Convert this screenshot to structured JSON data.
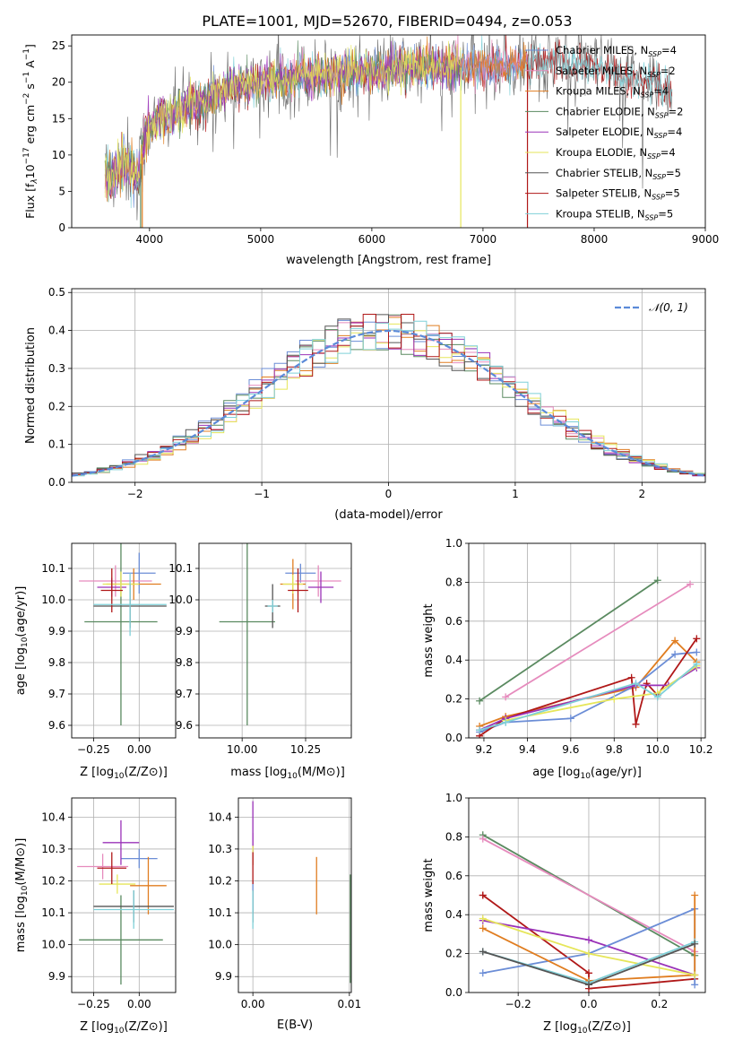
{
  "figure": {
    "title": "PLATE=1001, MJD=52670, FIBERID=0494, z=0.053"
  },
  "model_colors": {
    "Chabrier MILES": "#6b8dd6",
    "Salpeter MILES": "#e68bbd",
    "Kroupa MILES": "#e07d20",
    "Chabrier ELODIE": "#5a8a60",
    "Salpeter ELODIE": "#9a32b8",
    "Kroupa ELODIE": "#e6e65a",
    "Chabrier STELIB": "#555555",
    "Salpeter STELIB": "#b01818",
    "Kroupa STELIB": "#7fd0d8"
  },
  "chart_data": [
    {
      "id": "spectrum",
      "type": "line",
      "xlabel": "wavelength [Angstrom, rest frame]",
      "ylabel": "Flux [f_λ10^-17 erg cm^-2 s^-1 A^-1]",
      "xlim": [
        3300,
        9000
      ],
      "ylim": [
        0,
        26.5
      ],
      "xticks": [
        4000,
        5000,
        6000,
        7000,
        8000,
        9000
      ],
      "yticks": [
        0,
        5,
        10,
        15,
        20,
        25
      ],
      "grid": false,
      "legend": "top-right",
      "legend_entries": [
        {
          "label": "Chabrier MILES, N",
          "sub": "SSP",
          "suffix": "=4"
        },
        {
          "label": "Salpeter MILES, N",
          "sub": "SSP",
          "suffix": "=2"
        },
        {
          "label": "Kroupa MILES, N",
          "sub": "SSP",
          "suffix": "=4"
        },
        {
          "label": "Chabrier ELODIE, N",
          "sub": "SSP",
          "suffix": "=2"
        },
        {
          "label": "Salpeter ELODIE, N",
          "sub": "SSP",
          "suffix": "=4"
        },
        {
          "label": "Kroupa ELODIE, N",
          "sub": "SSP",
          "suffix": "=4"
        },
        {
          "label": "Chabrier STELIB, N",
          "sub": "SSP",
          "suffix": "=5"
        },
        {
          "label": "Salpeter STELIB, N",
          "sub": "SSP",
          "suffix": "=5"
        },
        {
          "label": "Kroupa STELIB, N",
          "sub": "SSP",
          "suffix": "=5"
        }
      ],
      "envelope_x": [
        3600,
        3700,
        3800,
        3900,
        3950,
        4000,
        4100,
        4200,
        4300,
        4400,
        4500,
        4600,
        4800,
        5000,
        5200,
        5400,
        5600,
        5800,
        6000,
        6200,
        6400,
        6600,
        6800,
        7000,
        7200,
        7400,
        7600,
        7800,
        8000,
        8200,
        8400,
        8700
      ],
      "envelope_y": [
        7,
        8,
        9,
        7,
        11.5,
        14,
        15,
        15.5,
        16.5,
        17,
        17.5,
        18.5,
        19.5,
        20,
        20.5,
        21,
        21,
        21.5,
        21.5,
        22,
        22,
        22,
        22,
        22,
        22.2,
        22.5,
        22.8,
        22.5,
        22,
        21,
        20,
        19
      ]
    },
    {
      "id": "residual-histogram",
      "type": "step",
      "xlabel": "(data-model)/error",
      "ylabel": "Normed distribution",
      "xlim": [
        -2.5,
        2.5
      ],
      "ylim": [
        0,
        0.51
      ],
      "xticks": [
        -2,
        -1,
        0,
        1,
        2
      ],
      "yticks": [
        0.0,
        0.1,
        0.2,
        0.3,
        0.4,
        0.5
      ],
      "grid": true,
      "legend": "top-right",
      "legend_entries": [
        {
          "label": "𝒩(0, 1)"
        }
      ],
      "bin_width": 0.1
    },
    {
      "id": "age-vs-Z",
      "type": "errorbar",
      "xlabel": "Z [log10(Z/Z⊙)]",
      "ylabel": "age  [log10(age/yr)]",
      "xlim": [
        -0.37,
        0.2
      ],
      "ylim": [
        9.56,
        10.18
      ],
      "xticks": [
        -0.25,
        0.0
      ],
      "yticks": [
        9.6,
        9.7,
        9.8,
        9.9,
        10.0,
        10.1
      ],
      "grid": true,
      "points": [
        {
          "model": "Chabrier MILES",
          "x": 0.0,
          "y": 10.085,
          "xerr": 0.09,
          "yerr": 0.065
        },
        {
          "model": "Salpeter MILES",
          "x": -0.13,
          "y": 10.06,
          "xerr": 0.2,
          "yerr": 0.05
        },
        {
          "model": "Kroupa MILES",
          "x": -0.03,
          "y": 10.05,
          "xerr": 0.15,
          "yerr": 0.05
        },
        {
          "model": "Chabrier ELODIE",
          "x": -0.1,
          "y": 9.93,
          "xerr": 0.2,
          "yerr": 0.33
        },
        {
          "model": "Salpeter ELODIE",
          "x": -0.15,
          "y": 10.04,
          "xerr": 0.08,
          "yerr": 0.03
        },
        {
          "model": "Kroupa ELODIE",
          "x": -0.1,
          "y": 10.05,
          "xerr": 0.1,
          "yerr": 0.04
        },
        {
          "model": "Chabrier STELIB",
          "x": -0.05,
          "y": 9.98,
          "xerr": 0.2,
          "yerr": 0.07
        },
        {
          "model": "Salpeter STELIB",
          "x": -0.15,
          "y": 10.03,
          "xerr": 0.06,
          "yerr": 0.07
        },
        {
          "model": "Kroupa STELIB",
          "x": -0.05,
          "y": 9.985,
          "xerr": 0.2,
          "yerr": 0.1
        }
      ]
    },
    {
      "id": "age-vs-mass",
      "type": "errorbar",
      "xlabel": "mass [log10(M/M⊙)]",
      "ylabel": "",
      "xlim": [
        9.83,
        10.43
      ],
      "ylim": [
        9.56,
        10.18
      ],
      "xticks": [
        10.0,
        10.25
      ],
      "yticks": [
        9.6,
        9.7,
        9.8,
        9.9,
        10.0,
        10.1
      ],
      "grid": true,
      "points": [
        {
          "model": "Chabrier MILES",
          "x": 10.23,
          "y": 10.085,
          "xerr": 0.06,
          "yerr": 0.03
        },
        {
          "model": "Salpeter MILES",
          "x": 10.3,
          "y": 10.06,
          "xerr": 0.09,
          "yerr": 0.05
        },
        {
          "model": "Kroupa MILES",
          "x": 10.2,
          "y": 10.05,
          "xerr": 0.05,
          "yerr": 0.08
        },
        {
          "model": "Chabrier ELODIE",
          "x": 10.02,
          "y": 9.93,
          "xerr": 0.11,
          "yerr": 0.33
        },
        {
          "model": "Salpeter ELODIE",
          "x": 10.31,
          "y": 10.04,
          "xerr": 0.05,
          "yerr": 0.05
        },
        {
          "model": "Kroupa ELODIE",
          "x": 10.2,
          "y": 10.05,
          "xerr": 0.04,
          "yerr": 0.03
        },
        {
          "model": "Chabrier STELIB",
          "x": 10.12,
          "y": 9.98,
          "xerr": 0.03,
          "yerr": 0.07
        },
        {
          "model": "Salpeter STELIB",
          "x": 10.22,
          "y": 10.03,
          "xerr": 0.04,
          "yerr": 0.07
        },
        {
          "model": "Kroupa STELIB",
          "x": 10.12,
          "y": 9.98,
          "xerr": 0.02,
          "yerr": 0.02
        }
      ]
    },
    {
      "id": "mass-weight-vs-age",
      "type": "line",
      "xlabel": "age  [log10(age/yr)]",
      "ylabel": "mass weight",
      "xlim": [
        9.13,
        10.22
      ],
      "ylim": [
        0,
        1.0
      ],
      "xticks": [
        9.2,
        9.4,
        9.6,
        9.8,
        10.0,
        10.2
      ],
      "yticks": [
        0.0,
        0.2,
        0.4,
        0.6,
        0.8,
        1.0
      ],
      "grid": true,
      "series": [
        {
          "model": "Chabrier ELODIE",
          "x": [
            9.18,
            10.0
          ],
          "y": [
            0.19,
            0.81
          ]
        },
        {
          "model": "Salpeter MILES",
          "x": [
            9.3,
            10.15
          ],
          "y": [
            0.21,
            0.79
          ]
        },
        {
          "model": "Kroupa MILES",
          "x": [
            9.18,
            9.3,
            9.9,
            10.08,
            10.18
          ],
          "y": [
            0.06,
            0.11,
            0.26,
            0.5,
            0.39
          ]
        },
        {
          "model": "Chabrier MILES",
          "x": [
            9.18,
            9.3,
            9.6,
            9.9,
            10.08,
            10.18
          ],
          "y": [
            0.03,
            0.08,
            0.1,
            0.27,
            0.43,
            0.44
          ]
        },
        {
          "model": "Salpeter STELIB",
          "x": [
            9.18,
            9.3,
            9.88,
            9.9,
            9.95,
            10.0,
            10.18
          ],
          "y": [
            0.01,
            0.1,
            0.31,
            0.07,
            0.28,
            0.22,
            0.51
          ]
        },
        {
          "model": "Salpeter ELODIE",
          "x": [
            9.18,
            9.3,
            9.9,
            10.05,
            10.18
          ],
          "y": [
            0.04,
            0.1,
            0.27,
            0.27,
            0.36
          ]
        },
        {
          "model": "Kroupa ELODIE",
          "x": [
            9.3,
            9.8,
            10.0,
            10.18
          ],
          "y": [
            0.09,
            0.2,
            0.23,
            0.37
          ]
        },
        {
          "model": "Kroupa STELIB",
          "x": [
            9.18,
            9.3,
            9.9,
            10.0,
            10.18
          ],
          "y": [
            0.04,
            0.08,
            0.28,
            0.21,
            0.38
          ]
        }
      ]
    },
    {
      "id": "mass-vs-Z",
      "type": "errorbar",
      "xlabel": "Z [log10(Z/Z⊙)]",
      "ylabel": "mass [log10(M/M⊙)]",
      "xlim": [
        -0.37,
        0.2
      ],
      "ylim": [
        9.85,
        10.46
      ],
      "xticks": [
        -0.25,
        0.0
      ],
      "yticks": [
        9.9,
        10.0,
        10.1,
        10.2,
        10.3,
        10.4
      ],
      "grid": true,
      "points": [
        {
          "model": "Chabrier MILES",
          "x": 0.0,
          "y": 10.27,
          "xerr": 0.1,
          "yerr": 0.03
        },
        {
          "model": "Salpeter MILES",
          "x": -0.2,
          "y": 10.245,
          "xerr": 0.14,
          "yerr": 0.04
        },
        {
          "model": "Kroupa MILES",
          "x": 0.05,
          "y": 10.185,
          "xerr": 0.1,
          "yerr": 0.09
        },
        {
          "model": "Chabrier ELODIE",
          "x": -0.1,
          "y": 10.015,
          "xerr": 0.23,
          "yerr": 0.14
        },
        {
          "model": "Salpeter ELODIE",
          "x": -0.1,
          "y": 10.32,
          "xerr": 0.1,
          "yerr": 0.07
        },
        {
          "model": "Kroupa ELODIE",
          "x": -0.12,
          "y": 10.19,
          "xerr": 0.1,
          "yerr": 0.03
        },
        {
          "model": "Chabrier STELIB",
          "x": -0.03,
          "y": 10.12,
          "xerr": 0.22,
          "yerr": 0.05
        },
        {
          "model": "Salpeter STELIB",
          "x": -0.15,
          "y": 10.24,
          "xerr": 0.08,
          "yerr": 0.05
        },
        {
          "model": "Kroupa STELIB",
          "x": -0.03,
          "y": 10.11,
          "xerr": 0.22,
          "yerr": 0.06
        }
      ]
    },
    {
      "id": "mass-vs-ebv",
      "type": "errorbar",
      "xlabel": "E(B-V)",
      "ylabel": "",
      "xlim": [
        -0.0015,
        0.0102
      ],
      "ylim": [
        9.85,
        10.46
      ],
      "xticks": [
        0.0,
        0.01
      ],
      "yticks": [
        9.9,
        10.0,
        10.1,
        10.2,
        10.3,
        10.4
      ],
      "grid": true,
      "points": [
        {
          "model": "Chabrier MILES",
          "x": 0.0,
          "y": 10.15,
          "xerr": 0,
          "yerr": 0.05
        },
        {
          "model": "Salpeter MILES",
          "x": 0.0,
          "y": 10.3,
          "xerr": 0,
          "yerr": 0.05
        },
        {
          "model": "Kroupa MILES",
          "x": 0.0066,
          "y": 10.185,
          "xerr": 0,
          "yerr": 0.09
        },
        {
          "model": "Chabrier ELODIE",
          "x": 0.0101,
          "y": 10.05,
          "xerr": 0,
          "yerr": 0.17
        },
        {
          "model": "Salpeter ELODIE",
          "x": 0.0,
          "y": 10.35,
          "xerr": 0,
          "yerr": 0.1
        },
        {
          "model": "Kroupa ELODIE",
          "x": 0.0,
          "y": 10.28,
          "xerr": 0,
          "yerr": 0.03
        },
        {
          "model": "Chabrier STELIB",
          "x": 0.0,
          "y": 10.12,
          "xerr": 0,
          "yerr": 0.05
        },
        {
          "model": "Salpeter STELIB",
          "x": 0.0,
          "y": 10.24,
          "xerr": 0,
          "yerr": 0.05
        },
        {
          "model": "Kroupa STELIB",
          "x": 0.0,
          "y": 10.11,
          "xerr": 0,
          "yerr": 0.06
        }
      ]
    },
    {
      "id": "mass-weight-vs-Z",
      "type": "line",
      "xlabel": "Z [log10(Z/Z⊙)]",
      "ylabel": "mass weight",
      "xlim": [
        -0.34,
        0.33
      ],
      "ylim": [
        0,
        1.0
      ],
      "xticks": [
        -0.2,
        0.0,
        0.2
      ],
      "yticks": [
        0.0,
        0.2,
        0.4,
        0.6,
        0.8,
        1.0
      ],
      "grid": true,
      "series": [
        {
          "model": "Chabrier ELODIE",
          "x": [
            -0.3,
            0.3
          ],
          "y": [
            0.81,
            0.19
          ]
        },
        {
          "model": "Salpeter MILES",
          "x": [
            -0.3,
            0.3
          ],
          "y": [
            0.79,
            0.21
          ]
        },
        {
          "model": "Salpeter STELIB",
          "x": [
            -0.3,
            -0.3,
            0.0,
            0.0,
            0.3
          ],
          "y": [
            0.5,
            0.5,
            0.1,
            0.02,
            0.07
          ]
        },
        {
          "model": "Salpeter ELODIE",
          "x": [
            -0.3,
            0.0,
            0.3
          ],
          "y": [
            0.37,
            0.27,
            0.09
          ]
        },
        {
          "model": "Chabrier MILES",
          "x": [
            -0.3,
            0.0,
            0.3,
            0.3
          ],
          "y": [
            0.1,
            0.2,
            0.43,
            0.04
          ]
        },
        {
          "model": "Kroupa MILES",
          "x": [
            -0.3,
            0.0,
            0.3,
            0.3
          ],
          "y": [
            0.33,
            0.06,
            0.09,
            0.5
          ]
        },
        {
          "model": "Kroupa ELODIE",
          "x": [
            -0.3,
            0.0,
            0.3
          ],
          "y": [
            0.38,
            0.2,
            0.09
          ]
        },
        {
          "model": "Kroupa STELIB",
          "x": [
            -0.3,
            0.0,
            0.3
          ],
          "y": [
            0.21,
            0.05,
            0.26
          ]
        },
        {
          "model": "Chabrier STELIB",
          "x": [
            -0.3,
            0.0,
            0.3
          ],
          "y": [
            0.21,
            0.04,
            0.25
          ]
        }
      ]
    }
  ]
}
